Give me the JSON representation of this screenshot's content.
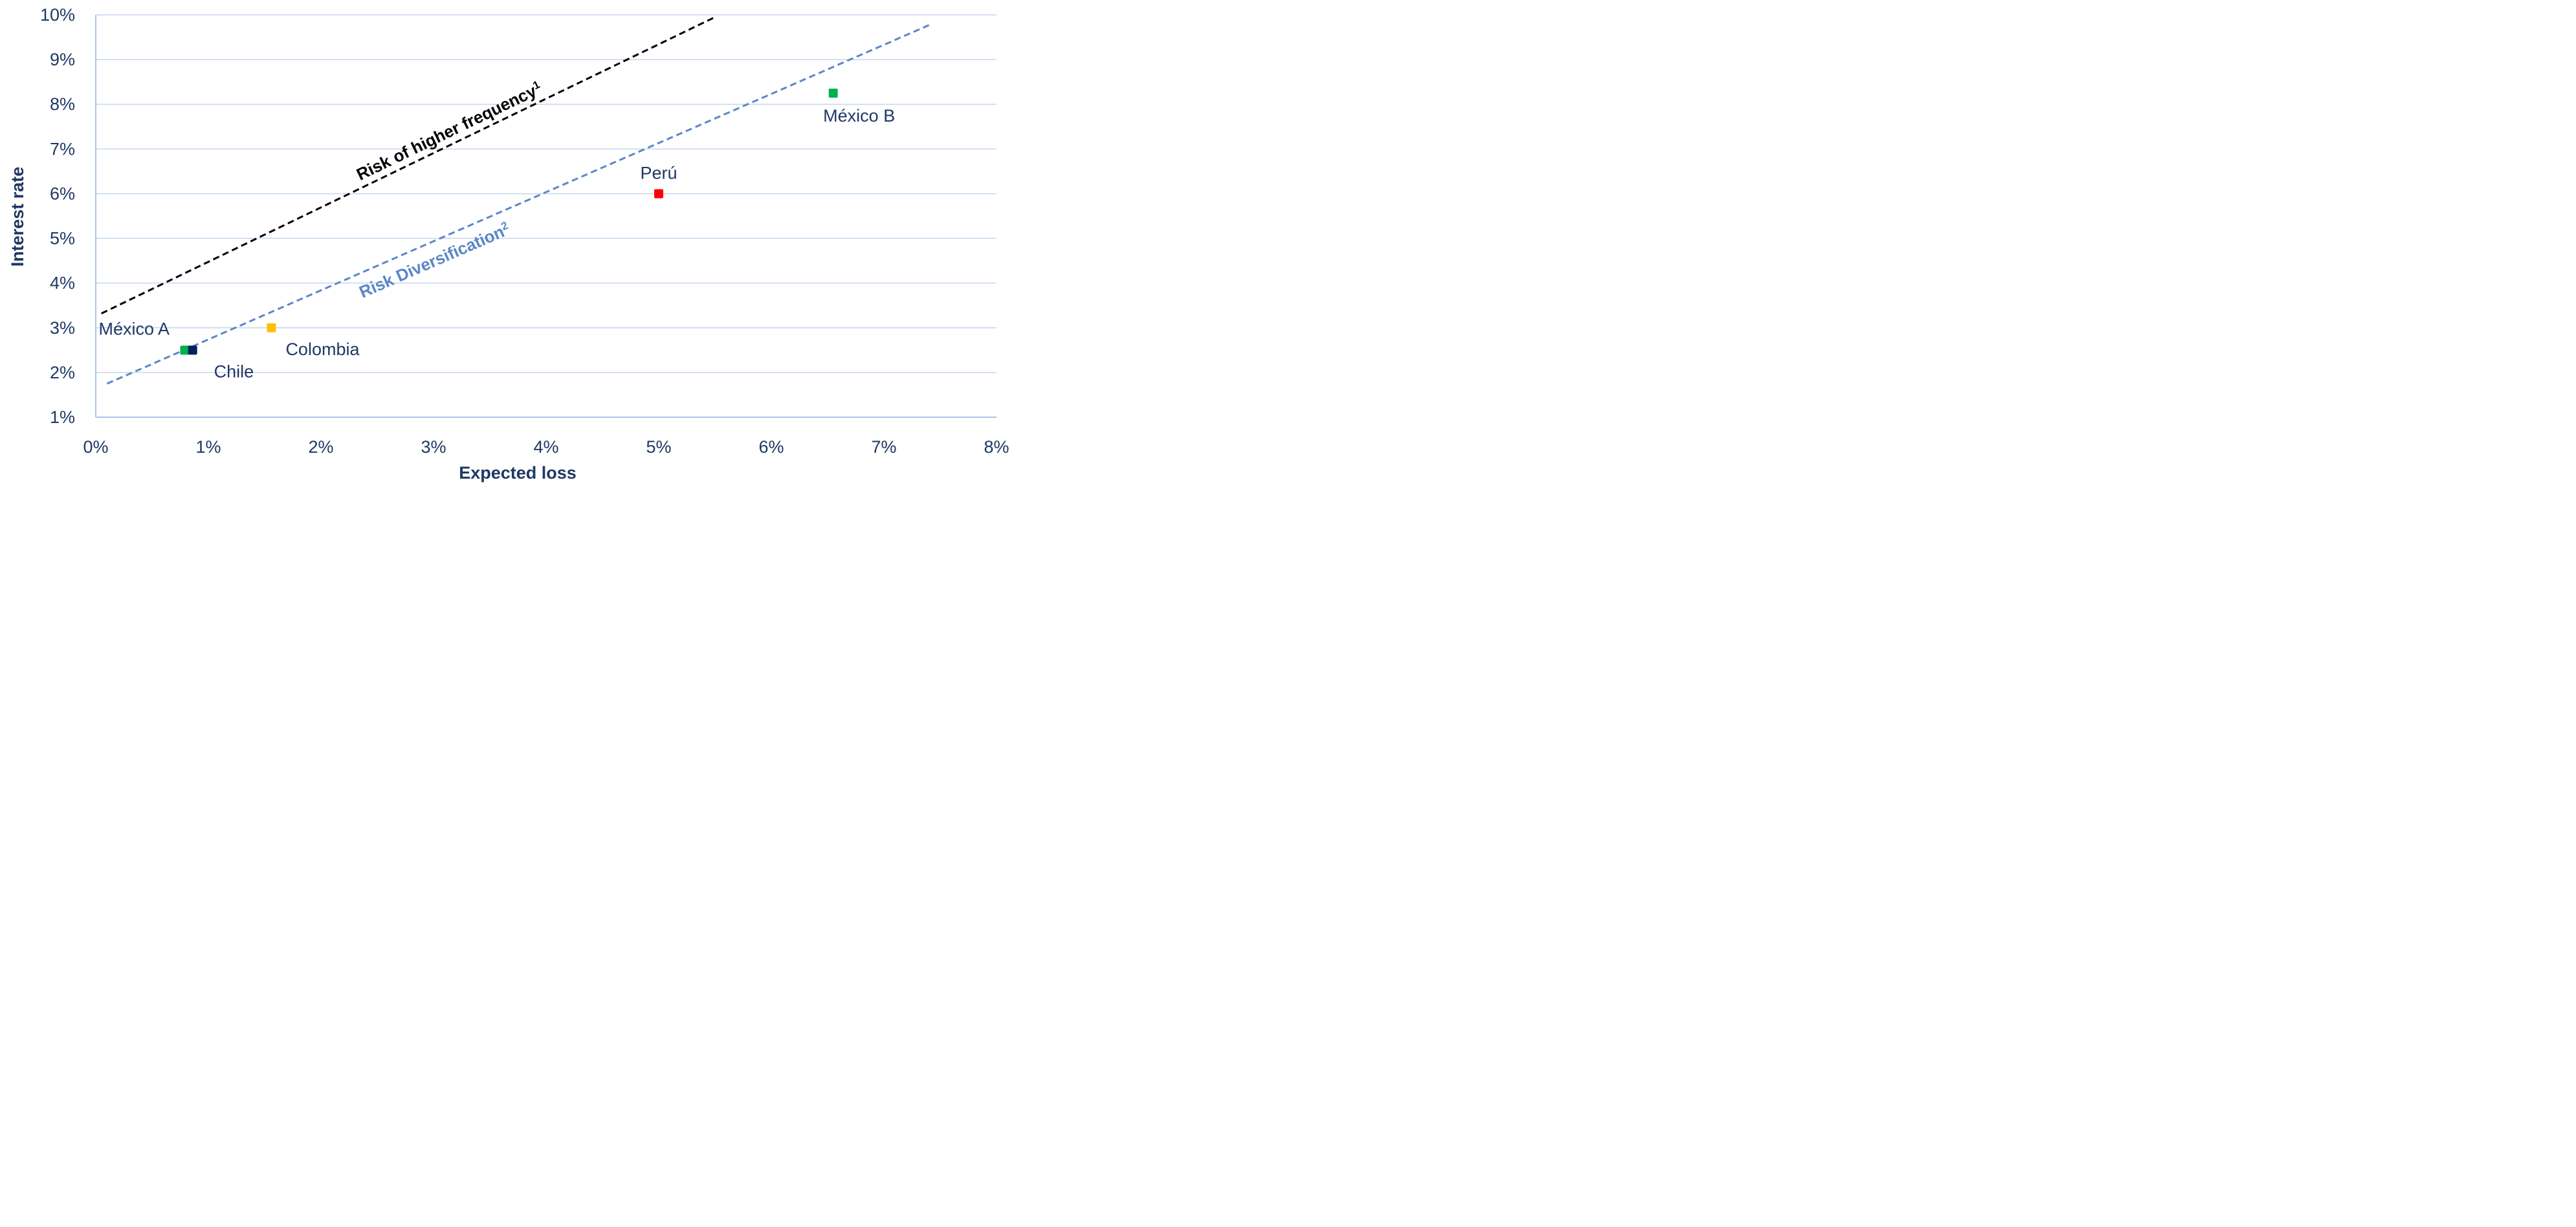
{
  "chart_data": {
    "type": "scatter",
    "xlabel": "Expected loss",
    "ylabel": "Interest rate",
    "x_unit": "%",
    "y_unit": "%",
    "xlim": [
      0,
      8
    ],
    "ylim": [
      1,
      10
    ],
    "x_ticks": [
      "0%",
      "1%",
      "2%",
      "3%",
      "4%",
      "5%",
      "6%",
      "7%",
      "8%"
    ],
    "y_ticks": [
      "1%",
      "2%",
      "3%",
      "4%",
      "5%",
      "6%",
      "7%",
      "8%",
      "9%",
      "10%"
    ],
    "grid": "horizontal",
    "points": [
      {
        "label": "México A",
        "x": 0.79,
        "y": 2.5,
        "color": "#00B050"
      },
      {
        "label": "Chile",
        "x": 0.86,
        "y": 2.5,
        "color": "#002060"
      },
      {
        "label": "Colombia",
        "x": 1.56,
        "y": 3.0,
        "color": "#FFC000"
      },
      {
        "label": "Perú",
        "x": 5.0,
        "y": 6.0,
        "color": "#FF0000"
      },
      {
        "label": "México B",
        "x": 6.55,
        "y": 8.25,
        "color": "#00B050"
      }
    ],
    "lines": [
      {
        "label": "Risk of higher frequency",
        "superscript": "1",
        "style": "dashed",
        "color": "#000000",
        "x": [
          0.05,
          5.5
        ],
        "y": [
          3.32,
          9.95
        ]
      },
      {
        "label": "Risk Diversification",
        "superscript": "2",
        "style": "dashed",
        "color": "#5B87C6",
        "x": [
          0.1,
          7.4
        ],
        "y": [
          1.75,
          9.77
        ]
      }
    ]
  }
}
